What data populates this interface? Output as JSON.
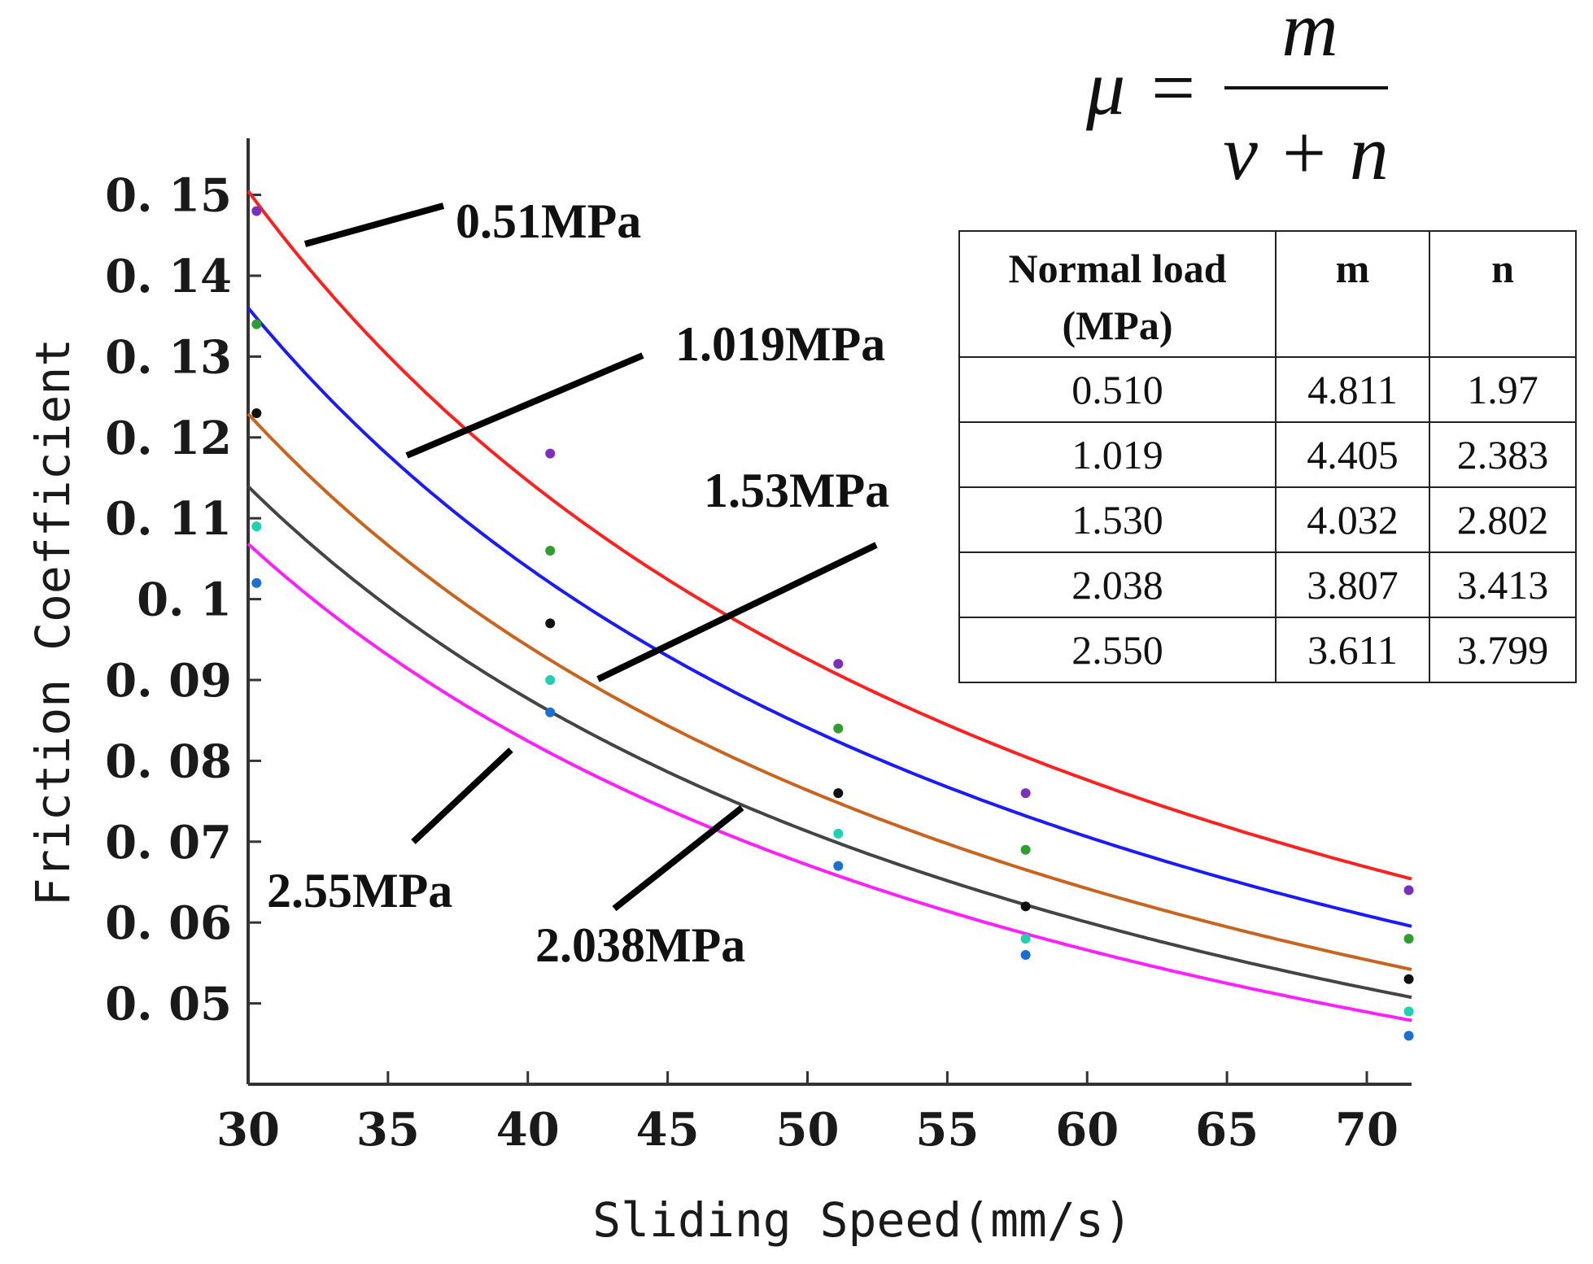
{
  "chart_data": {
    "type": "line",
    "xlabel": "Sliding Speed(mm/s)",
    "ylabel": "Friction Coefficient",
    "xlim": [
      30,
      71.6
    ],
    "ylim": [
      0.04,
      0.157
    ],
    "xticks": [
      30,
      35,
      40,
      45,
      50,
      55,
      60,
      65,
      70
    ],
    "xtick_labels": [
      "30",
      "35",
      "40",
      "45",
      "50",
      "55",
      "60",
      "65",
      "70"
    ],
    "yticks": [
      0.05,
      0.06,
      0.07,
      0.08,
      0.09,
      0.1,
      0.11,
      0.12,
      0.13,
      0.14,
      0.15
    ],
    "ytick_labels": [
      "0. 05",
      "0. 06",
      "0. 07",
      "0. 08",
      "0. 09",
      "0. 1",
      "0. 11",
      "0. 12",
      "0. 13",
      "0. 14",
      "0. 15"
    ],
    "grid": false,
    "formula": {
      "lhs": "μ",
      "eq": "=",
      "numerator": "m",
      "denominator": "v + n"
    },
    "series": [
      {
        "name": "0.51MPa",
        "color": "#ff2020",
        "marker_color": "#7b2fbf",
        "m": 4.811,
        "n": 1.97,
        "points": [
          [
            30.3,
            0.148
          ],
          [
            40.8,
            0.118
          ],
          [
            51.1,
            0.092
          ],
          [
            57.8,
            0.076
          ],
          [
            71.5,
            0.064
          ]
        ]
      },
      {
        "name": "1.019MPa",
        "color": "#1a1aff",
        "marker_color": "#2e9e2e",
        "m": 4.405,
        "n": 2.383,
        "points": [
          [
            30.3,
            0.134
          ],
          [
            40.8,
            0.106
          ],
          [
            51.1,
            0.084
          ],
          [
            57.8,
            0.069
          ],
          [
            71.5,
            0.058
          ]
        ]
      },
      {
        "name": "1.53MPa",
        "color": "#c8641e",
        "marker_color": "#111111",
        "m": 4.032,
        "n": 2.802,
        "points": [
          [
            30.3,
            0.123
          ],
          [
            40.8,
            0.097
          ],
          [
            51.1,
            0.076
          ],
          [
            57.8,
            0.062
          ],
          [
            71.5,
            0.053
          ]
        ]
      },
      {
        "name": "2.038MPa",
        "color": "#444444",
        "marker_color": "#20d0b0",
        "m": 3.807,
        "n": 3.413,
        "points": [
          [
            30.3,
            0.109
          ],
          [
            40.8,
            0.09
          ],
          [
            51.1,
            0.071
          ],
          [
            57.8,
            0.058
          ],
          [
            71.5,
            0.049
          ]
        ]
      },
      {
        "name": "2.55MPa",
        "color": "#ff20ff",
        "marker_color": "#1a6fd0",
        "m": 3.611,
        "n": 3.799,
        "points": [
          [
            30.3,
            0.102
          ],
          [
            40.8,
            0.086
          ],
          [
            51.1,
            0.067
          ],
          [
            57.8,
            0.056
          ],
          [
            71.5,
            0.046
          ]
        ]
      }
    ],
    "table": {
      "headers": [
        "Normal load (MPa)",
        "m",
        "n"
      ],
      "header_lines": [
        [
          "Normal load",
          "(MPa)"
        ],
        [
          "m"
        ],
        [
          "n"
        ]
      ],
      "rows": [
        [
          "0.510",
          "4.811",
          "1.97"
        ],
        [
          "1.019",
          "4.405",
          "2.383"
        ],
        [
          "1.530",
          "4.032",
          "2.802"
        ],
        [
          "2.038",
          "3.807",
          "3.413"
        ],
        [
          "2.550",
          "3.611",
          "3.799"
        ]
      ]
    }
  }
}
